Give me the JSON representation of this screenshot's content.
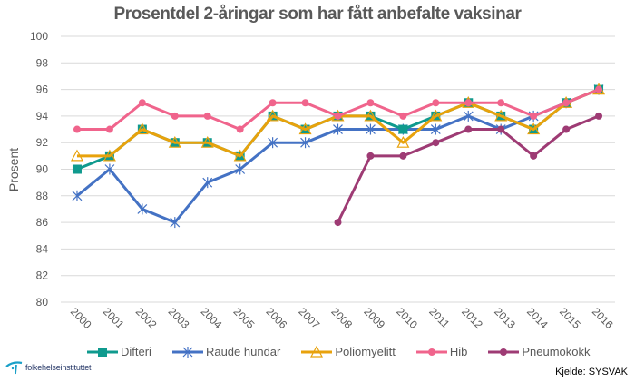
{
  "chart_data": {
    "type": "line",
    "title": "Prosentdel 2-åringar som har fått anbefalte vaksinar",
    "xlabel": "",
    "ylabel": "Prosent",
    "ylim": [
      80,
      100
    ],
    "yticks": [
      "80",
      "82",
      "84",
      "86",
      "88",
      "90",
      "92",
      "94",
      "96",
      "98",
      "100"
    ],
    "grid": true,
    "legend_position": "bottom",
    "categories": [
      "2000",
      "2001",
      "2002",
      "2003",
      "2004",
      "2005",
      "2006",
      "2007",
      "2008",
      "2009",
      "2010",
      "2011",
      "2012",
      "2013",
      "2014",
      "2015",
      "2016"
    ],
    "series": [
      {
        "name": "Difteri",
        "color": "#0F9A8E",
        "marker": "square",
        "values": [
          90,
          91,
          93,
          92,
          92,
          91,
          94,
          93,
          94,
          94,
          93,
          94,
          95,
          94,
          93,
          95,
          96
        ]
      },
      {
        "name": "Raude hundar",
        "color": "#4472C4",
        "marker": "star",
        "values": [
          88,
          90,
          87,
          86,
          89,
          90,
          92,
          92,
          93,
          93,
          93,
          93,
          94,
          93,
          94,
          95,
          96
        ]
      },
      {
        "name": "Poliomyelitt",
        "color": "#E8A20C",
        "marker": "triangle",
        "values": [
          91,
          91,
          93,
          92,
          92,
          91,
          94,
          93,
          94,
          94,
          92,
          94,
          95,
          94,
          93,
          95,
          96
        ]
      },
      {
        "name": "Hib",
        "color": "#F0648C",
        "marker": "circle",
        "values": [
          93,
          93,
          95,
          94,
          94,
          93,
          95,
          95,
          94,
          95,
          94,
          95,
          95,
          95,
          94,
          95,
          96
        ]
      },
      {
        "name": "Pneumokokk",
        "color": "#9E3B74",
        "marker": "circle",
        "values": [
          null,
          null,
          null,
          null,
          null,
          null,
          null,
          null,
          86,
          91,
          91,
          92,
          93,
          93,
          91,
          93,
          94
        ]
      }
    ]
  },
  "footer": {
    "source": "Kjelde: SYSVAK",
    "logo_text": "folkehelseinstituttet"
  }
}
